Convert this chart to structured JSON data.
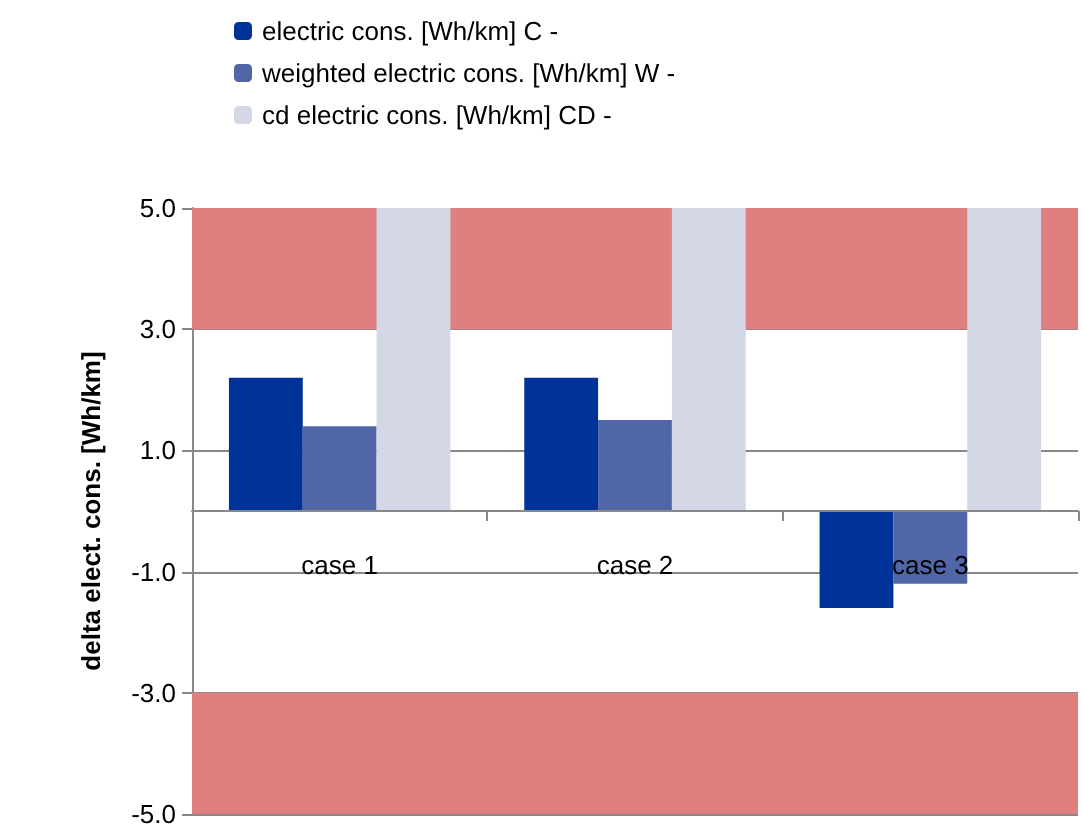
{
  "chart_data": {
    "type": "bar",
    "ylabel": "delta elect. cons. [Wh/km]",
    "categories": [
      "case 1",
      "case 2",
      "case 3"
    ],
    "series": [
      {
        "name": "electric cons. [Wh/km] C -",
        "color": "#003399",
        "values": [
          2.2,
          2.2,
          -1.6
        ]
      },
      {
        "name": "weighted electric cons. [Wh/km] W -",
        "color": "#5066a6",
        "values": [
          1.4,
          1.5,
          -1.2
        ]
      },
      {
        "name": "cd electric cons. [Wh/km] CD -",
        "color": "#d3d7e6",
        "values": [
          5,
          5,
          5
        ]
      }
    ],
    "ylim": [
      -5,
      5
    ],
    "yticks": [
      {
        "value": -5,
        "label": "-5.0"
      },
      {
        "value": -3,
        "label": "-3.0"
      },
      {
        "value": -1,
        "label": "-1.0"
      },
      {
        "value": 1,
        "label": "1.0"
      },
      {
        "value": 3,
        "label": "3.0"
      },
      {
        "value": 5,
        "label": "5.0"
      }
    ],
    "bands": [
      {
        "axis": "y",
        "from": 3,
        "to": 5,
        "color": "#e07f7f"
      },
      {
        "axis": "y",
        "from": -5,
        "to": -3,
        "color": "#e07f7f"
      }
    ],
    "grid": "y",
    "legend": "top"
  }
}
